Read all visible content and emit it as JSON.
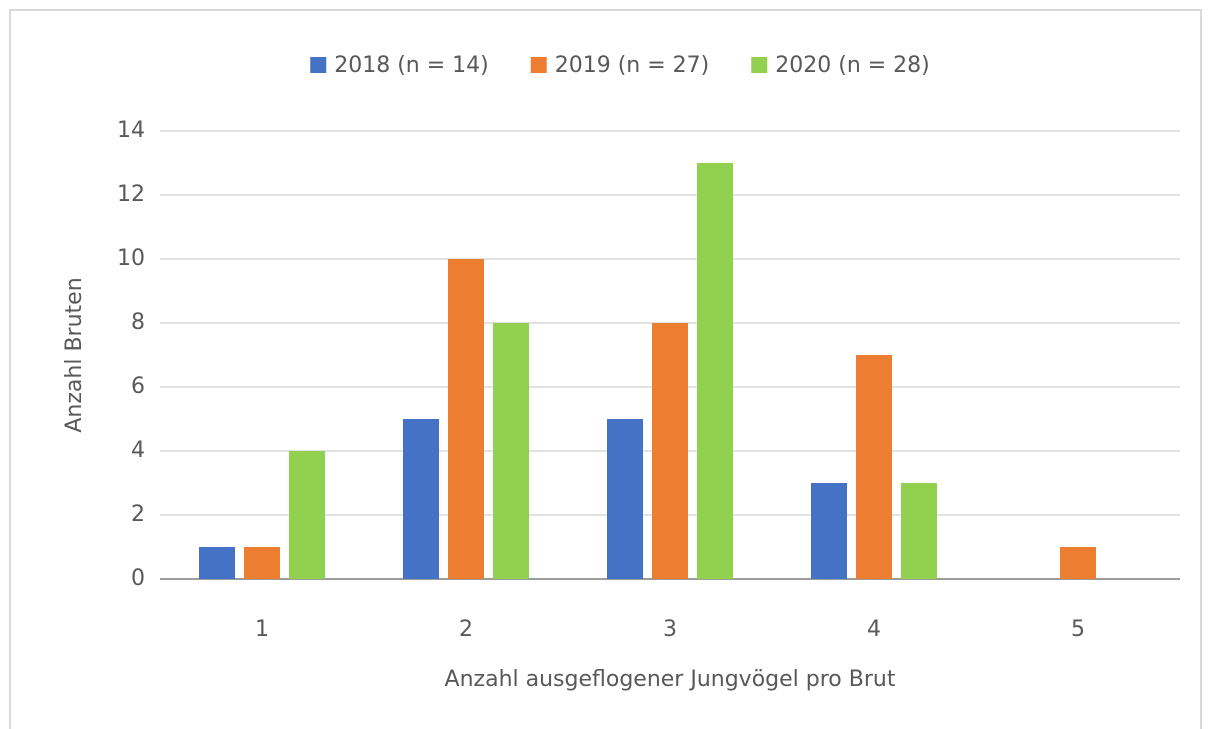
{
  "chart_data": {
    "type": "bar",
    "categories": [
      "1",
      "2",
      "3",
      "4",
      "5"
    ],
    "series": [
      {
        "name": "2018 (n = 14)",
        "color": "#4472c4",
        "values": [
          1,
          5,
          5,
          3,
          0
        ]
      },
      {
        "name": "2019 (n = 27)",
        "color": "#ed7d31",
        "values": [
          1,
          10,
          8,
          7,
          1
        ]
      },
      {
        "name": "2020 (n = 28)",
        "color": "#92d050",
        "values": [
          4,
          8,
          13,
          3,
          0
        ]
      }
    ],
    "x_label": "Anzahl ausgeflogener Jungvögel pro Brut",
    "y_label": "Anzahl Bruten",
    "ylim": [
      0,
      14
    ],
    "yticks": [
      0,
      2,
      4,
      6,
      8,
      10,
      12,
      14
    ],
    "grid": true,
    "legend": "top"
  }
}
